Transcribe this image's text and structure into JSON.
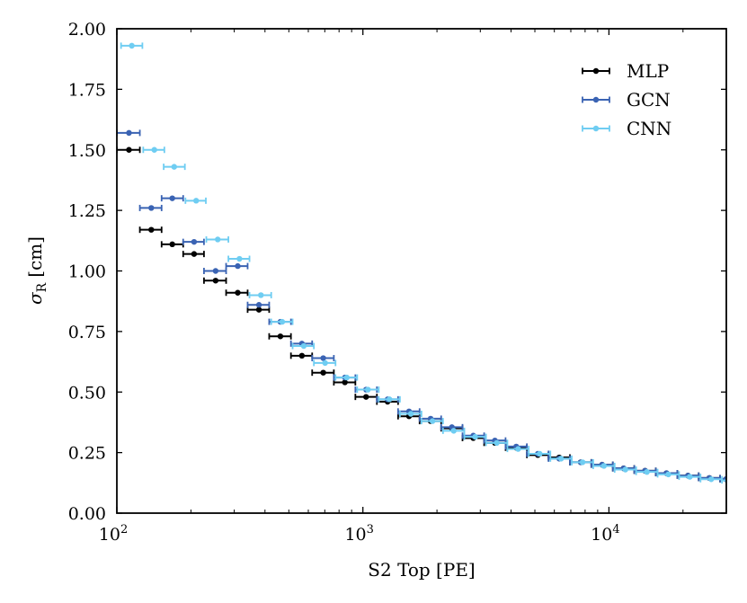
{
  "chart_data": {
    "type": "scatter",
    "title": "",
    "xlabel": "S2 Top [PE]",
    "ylabel_main": "σ",
    "ylabel_sub": "R",
    "ylabel_unit": "[cm]",
    "xscale": "log",
    "xlim": [
      100,
      30000
    ],
    "ylim": [
      0.0,
      2.0
    ],
    "grid": false,
    "legend_position": "top-right",
    "x_ticks": [
      {
        "value": 100,
        "base": "10",
        "exp": "2"
      },
      {
        "value": 1000,
        "base": "10",
        "exp": "3"
      },
      {
        "value": 10000,
        "base": "10",
        "exp": "4"
      }
    ],
    "y_ticks": [
      {
        "value": 0.0,
        "label": "0.00"
      },
      {
        "value": 0.25,
        "label": "0.25"
      },
      {
        "value": 0.5,
        "label": "0.50"
      },
      {
        "value": 0.75,
        "label": "0.75"
      },
      {
        "value": 1.0,
        "label": "1.00"
      },
      {
        "value": 1.25,
        "label": "1.25"
      },
      {
        "value": 1.5,
        "label": "1.50"
      },
      {
        "value": 1.75,
        "label": "1.75"
      },
      {
        "value": 2.0,
        "label": "2.00"
      }
    ],
    "series": [
      {
        "name": "MLP",
        "color": "#000000",
        "points": [
          {
            "x": 112,
            "xlo": 100,
            "xhi": 124,
            "y": 1.5
          },
          {
            "x": 138,
            "xlo": 124,
            "xhi": 152,
            "y": 1.17
          },
          {
            "x": 168,
            "xlo": 152,
            "xhi": 186,
            "y": 1.11
          },
          {
            "x": 206,
            "xlo": 186,
            "xhi": 226,
            "y": 1.07
          },
          {
            "x": 252,
            "xlo": 226,
            "xhi": 278,
            "y": 0.96
          },
          {
            "x": 310,
            "xlo": 278,
            "xhi": 340,
            "y": 0.91
          },
          {
            "x": 378,
            "xlo": 340,
            "xhi": 416,
            "y": 0.84
          },
          {
            "x": 462,
            "xlo": 416,
            "xhi": 510,
            "y": 0.73
          },
          {
            "x": 565,
            "xlo": 510,
            "xhi": 622,
            "y": 0.65
          },
          {
            "x": 690,
            "xlo": 622,
            "xhi": 762,
            "y": 0.58
          },
          {
            "x": 845,
            "xlo": 762,
            "xhi": 932,
            "y": 0.54
          },
          {
            "x": 1030,
            "xlo": 932,
            "xhi": 1140,
            "y": 0.48
          },
          {
            "x": 1260,
            "xlo": 1140,
            "xhi": 1390,
            "y": 0.46
          },
          {
            "x": 1540,
            "xlo": 1390,
            "xhi": 1700,
            "y": 0.4
          },
          {
            "x": 1885,
            "xlo": 1700,
            "xhi": 2080,
            "y": 0.38
          },
          {
            "x": 2300,
            "xlo": 2080,
            "xhi": 2540,
            "y": 0.35
          },
          {
            "x": 2810,
            "xlo": 2540,
            "xhi": 3110,
            "y": 0.31
          },
          {
            "x": 3440,
            "xlo": 3110,
            "xhi": 3800,
            "y": 0.29
          },
          {
            "x": 4200,
            "xlo": 3800,
            "xhi": 4640,
            "y": 0.27
          },
          {
            "x": 5140,
            "xlo": 4640,
            "xhi": 5680,
            "y": 0.24
          },
          {
            "x": 6280,
            "xlo": 5680,
            "xhi": 6940,
            "y": 0.23
          },
          {
            "x": 7680,
            "xlo": 6940,
            "xhi": 8480,
            "y": 0.21
          },
          {
            "x": 9380,
            "xlo": 8480,
            "xhi": 10370,
            "y": 0.2
          },
          {
            "x": 11470,
            "xlo": 10370,
            "xhi": 12680,
            "y": 0.185
          },
          {
            "x": 14020,
            "xlo": 12680,
            "xhi": 15500,
            "y": 0.175
          },
          {
            "x": 17140,
            "xlo": 15500,
            "xhi": 18950,
            "y": 0.165
          },
          {
            "x": 20950,
            "xlo": 18950,
            "xhi": 23160,
            "y": 0.155
          },
          {
            "x": 25600,
            "xlo": 23160,
            "xhi": 28300,
            "y": 0.145
          },
          {
            "x": 29900,
            "xlo": 28300,
            "xhi": 31500,
            "y": 0.14
          }
        ]
      },
      {
        "name": "GCN",
        "color": "#3a63b3",
        "points": [
          {
            "x": 112,
            "xlo": 100,
            "xhi": 124,
            "y": 1.57
          },
          {
            "x": 138,
            "xlo": 124,
            "xhi": 152,
            "y": 1.26
          },
          {
            "x": 168,
            "xlo": 152,
            "xhi": 186,
            "y": 1.3
          },
          {
            "x": 206,
            "xlo": 186,
            "xhi": 226,
            "y": 1.12
          },
          {
            "x": 252,
            "xlo": 226,
            "xhi": 278,
            "y": 1.0
          },
          {
            "x": 310,
            "xlo": 278,
            "xhi": 340,
            "y": 1.02
          },
          {
            "x": 378,
            "xlo": 340,
            "xhi": 416,
            "y": 0.86
          },
          {
            "x": 462,
            "xlo": 416,
            "xhi": 510,
            "y": 0.79
          },
          {
            "x": 565,
            "xlo": 510,
            "xhi": 622,
            "y": 0.7
          },
          {
            "x": 690,
            "xlo": 622,
            "xhi": 762,
            "y": 0.64
          },
          {
            "x": 845,
            "xlo": 762,
            "xhi": 932,
            "y": 0.56
          },
          {
            "x": 1030,
            "xlo": 932,
            "xhi": 1140,
            "y": 0.51
          },
          {
            "x": 1260,
            "xlo": 1140,
            "xhi": 1390,
            "y": 0.47
          },
          {
            "x": 1540,
            "xlo": 1390,
            "xhi": 1700,
            "y": 0.42
          },
          {
            "x": 1885,
            "xlo": 1700,
            "xhi": 2080,
            "y": 0.39
          },
          {
            "x": 2300,
            "xlo": 2080,
            "xhi": 2540,
            "y": 0.355
          },
          {
            "x": 2810,
            "xlo": 2540,
            "xhi": 3110,
            "y": 0.32
          },
          {
            "x": 3440,
            "xlo": 3110,
            "xhi": 3800,
            "y": 0.3
          },
          {
            "x": 4200,
            "xlo": 3800,
            "xhi": 4640,
            "y": 0.275
          },
          {
            "x": 5140,
            "xlo": 4640,
            "xhi": 5680,
            "y": 0.245
          },
          {
            "x": 6280,
            "xlo": 5680,
            "xhi": 6940,
            "y": 0.225
          },
          {
            "x": 7680,
            "xlo": 6940,
            "xhi": 8480,
            "y": 0.21
          },
          {
            "x": 9380,
            "xlo": 8480,
            "xhi": 10370,
            "y": 0.2
          },
          {
            "x": 11470,
            "xlo": 10370,
            "xhi": 12680,
            "y": 0.185
          },
          {
            "x": 14020,
            "xlo": 12680,
            "xhi": 15500,
            "y": 0.175
          },
          {
            "x": 17140,
            "xlo": 15500,
            "xhi": 18950,
            "y": 0.165
          },
          {
            "x": 20950,
            "xlo": 18950,
            "xhi": 23160,
            "y": 0.155
          },
          {
            "x": 25600,
            "xlo": 23160,
            "xhi": 28300,
            "y": 0.145
          },
          {
            "x": 29900,
            "xlo": 28300,
            "xhi": 31500,
            "y": 0.14
          }
        ]
      },
      {
        "name": "CNN",
        "color": "#6fcdf2",
        "points": [
          {
            "x": 115,
            "xlo": 104,
            "xhi": 127,
            "y": 1.93
          },
          {
            "x": 142,
            "xlo": 128,
            "xhi": 156,
            "y": 1.5
          },
          {
            "x": 171,
            "xlo": 155,
            "xhi": 189,
            "y": 1.43
          },
          {
            "x": 210,
            "xlo": 190,
            "xhi": 230,
            "y": 1.29
          },
          {
            "x": 257,
            "xlo": 231,
            "xhi": 284,
            "y": 1.13
          },
          {
            "x": 315,
            "xlo": 284,
            "xhi": 346,
            "y": 1.05
          },
          {
            "x": 385,
            "xlo": 346,
            "xhi": 424,
            "y": 0.9
          },
          {
            "x": 470,
            "xlo": 424,
            "xhi": 518,
            "y": 0.79
          },
          {
            "x": 575,
            "xlo": 518,
            "xhi": 632,
            "y": 0.69
          },
          {
            "x": 702,
            "xlo": 632,
            "xhi": 774,
            "y": 0.62
          },
          {
            "x": 860,
            "xlo": 774,
            "xhi": 948,
            "y": 0.56
          },
          {
            "x": 1048,
            "xlo": 948,
            "xhi": 1160,
            "y": 0.51
          },
          {
            "x": 1282,
            "xlo": 1160,
            "xhi": 1414,
            "y": 0.47
          },
          {
            "x": 1566,
            "xlo": 1414,
            "xhi": 1730,
            "y": 0.41
          },
          {
            "x": 1918,
            "xlo": 1730,
            "xhi": 2116,
            "y": 0.38
          },
          {
            "x": 2340,
            "xlo": 2116,
            "xhi": 2584,
            "y": 0.34
          },
          {
            "x": 2860,
            "xlo": 2584,
            "xhi": 3164,
            "y": 0.315
          },
          {
            "x": 3500,
            "xlo": 3164,
            "xhi": 3866,
            "y": 0.29
          },
          {
            "x": 4274,
            "xlo": 3866,
            "xhi": 4720,
            "y": 0.265
          },
          {
            "x": 5230,
            "xlo": 4720,
            "xhi": 5780,
            "y": 0.245
          },
          {
            "x": 6390,
            "xlo": 5780,
            "xhi": 7060,
            "y": 0.225
          },
          {
            "x": 7815,
            "xlo": 7060,
            "xhi": 8630,
            "y": 0.21
          },
          {
            "x": 9545,
            "xlo": 8630,
            "xhi": 10550,
            "y": 0.195
          },
          {
            "x": 11670,
            "xlo": 10550,
            "xhi": 12900,
            "y": 0.18
          },
          {
            "x": 14265,
            "xlo": 12900,
            "xhi": 15770,
            "y": 0.17
          },
          {
            "x": 17440,
            "xlo": 15770,
            "xhi": 19280,
            "y": 0.16
          },
          {
            "x": 21320,
            "xlo": 19280,
            "xhi": 23560,
            "y": 0.15
          },
          {
            "x": 26050,
            "xlo": 23560,
            "xhi": 28800,
            "y": 0.14
          },
          {
            "x": 30400,
            "xlo": 28800,
            "xhi": 32000,
            "y": 0.135
          }
        ]
      }
    ]
  }
}
